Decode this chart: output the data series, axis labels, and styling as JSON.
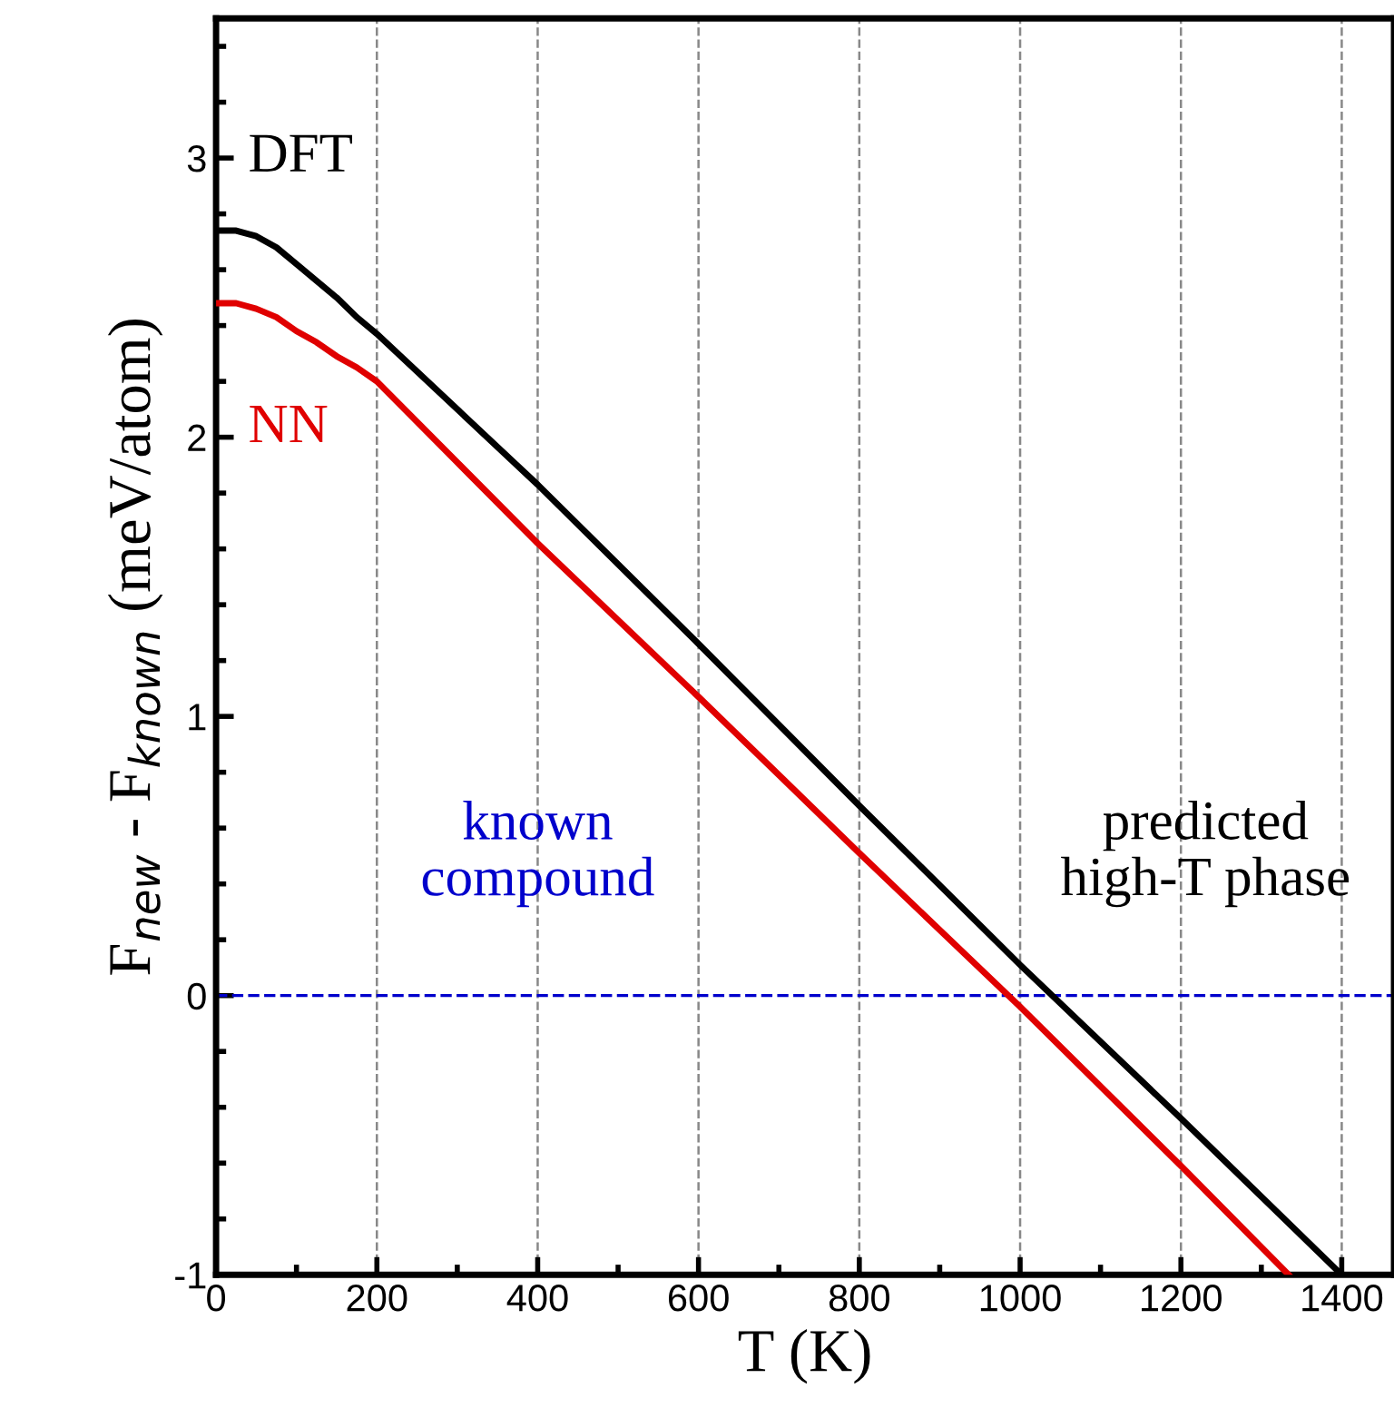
{
  "chart_data": {
    "type": "line",
    "xlabel": "T (K)",
    "ylabel": "F$_{new}$ - F$_{known}$ (meV/atom)",
    "series": [
      {
        "name": "DFT",
        "color": "#000000",
        "x": [
          0,
          25,
          50,
          75,
          100,
          125,
          150,
          175,
          200,
          400,
          600,
          800,
          1000,
          1200,
          1400
        ],
        "values": [
          2.74,
          2.74,
          2.72,
          2.68,
          2.62,
          2.56,
          2.5,
          2.43,
          2.37,
          1.83,
          1.26,
          0.68,
          0.11,
          -0.44,
          -1.0
        ]
      },
      {
        "name": "NN",
        "color": "#e00000",
        "x": [
          0,
          25,
          50,
          75,
          100,
          125,
          150,
          175,
          200,
          400,
          600,
          800,
          1000,
          1200,
          1334
        ],
        "values": [
          2.48,
          2.48,
          2.46,
          2.43,
          2.38,
          2.34,
          2.29,
          2.25,
          2.2,
          1.62,
          1.07,
          0.51,
          -0.04,
          -0.61,
          -1.0
        ]
      }
    ],
    "xlim": [
      0,
      1465
    ],
    "ylim": [
      -1,
      3.5
    ],
    "xticks": [
      0,
      200,
      400,
      600,
      800,
      1000,
      1200,
      1400
    ],
    "yticks": [
      -1,
      0,
      1,
      2,
      3
    ],
    "grid": "x",
    "marker": "none",
    "line_style": "solid",
    "legend": false,
    "ref_lines": [
      {
        "axis": "y",
        "value": 0,
        "color": "#0000cc",
        "line_style": "dashed"
      }
    ],
    "annotations": [
      "known\ncompound",
      "predicted\nhigh-T phase"
    ]
  }
}
